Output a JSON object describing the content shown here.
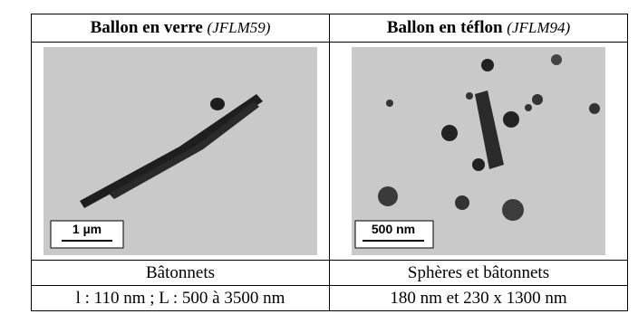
{
  "table": {
    "header": [
      {
        "title": "Ballon en verre",
        "code": "(JFLM59)"
      },
      {
        "title": "Ballon en téflon",
        "code": "(JFLM94)"
      }
    ],
    "images": [
      {
        "scale_label": "1 µm"
      },
      {
        "scale_label": "500 nm"
      }
    ],
    "rows": [
      [
        "Bâtonnets",
        "Sphères et bâtonnets"
      ],
      [
        "l : 110 nm ; L : 500 à 3500 nm",
        "180 nm et 230 x 1300 nm"
      ]
    ]
  }
}
